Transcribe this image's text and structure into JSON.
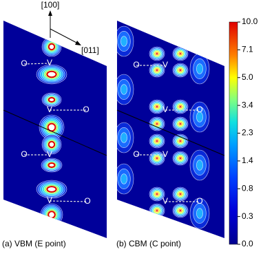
{
  "axes": {
    "vertical": "[100]",
    "horizontal": "[011]"
  },
  "panels": [
    {
      "caption": "(a) VBM (E point)",
      "atoms": [
        "O",
        "V",
        "V",
        "O",
        "O",
        "V",
        "V",
        "O"
      ]
    },
    {
      "caption": "(b) CBM (C point)",
      "atoms": [
        "O",
        "V",
        "V",
        "O",
        "O",
        "V",
        "V",
        "O"
      ]
    }
  ],
  "colorbar": {
    "ticks": [
      "10.0",
      "7.1",
      "5.0",
      "3.4",
      "2.3",
      "1.4",
      "0.8",
      "0.3",
      "0.0"
    ]
  }
}
